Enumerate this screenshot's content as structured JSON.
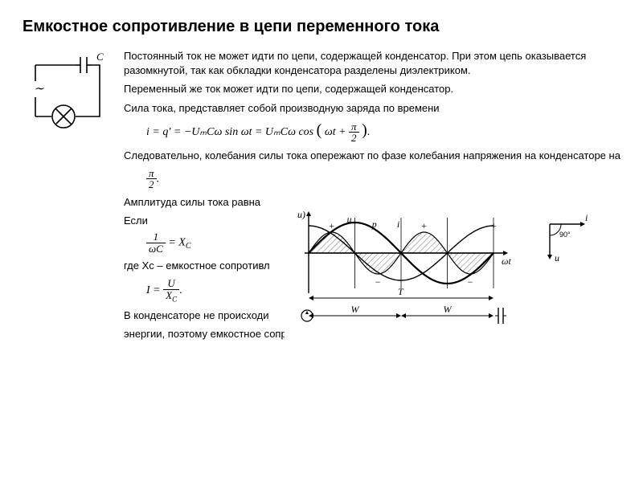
{
  "title": "Емкостное сопротивление в цепи переменного тока",
  "paragraphs": {
    "p1": "Постоянный ток не может идти по цепи, содержащей конденсатор. При этом цепь оказывается разомкнутой, так как обкладки конденсатора разделены диэлектриком.",
    "p2": "Переменный же ток может идти по цепи, содержащей конденсатор.",
    "p3": "Сила тока, представляет собой производную заряда по времени",
    "p4": "Следовательно, колебания силы тока опережают по фазе колебания напряжения на конденсаторе на",
    "p5": "Амплитуда силы тока равна",
    "p6pre": "Если",
    "p7": "где Xc – емкостное сопротивл",
    "p8a": "В конденсаторе не происходи",
    "p8b": "энергии, поэтому емкостное сопротивление называют реактивным."
  },
  "circuit": {
    "label_C": "C",
    "stroke": "#000000",
    "ac_symbol": "∼"
  },
  "formulas": {
    "main_current": "i = q′ = −UₘCω sin ωt = UₘCω cos",
    "cos_arg_l": "ωt +",
    "cos_arg_num": "π",
    "cos_arg_den": "2",
    "pi2_num": "π",
    "pi2_den": "2",
    "xc_num": "1",
    "xc_den": "ωC",
    "xc_eq": " = X",
    "xc_sub": "C",
    "I_left": "I = ",
    "I_num": "U",
    "I_den": "X",
    "I_den_sub": "C"
  },
  "wave": {
    "type": "line",
    "u_label": "u",
    "i_label": "i",
    "p_label": "p",
    "x_axis_label": "ωt",
    "y_axis_label": "u)",
    "T_label": "T",
    "W_label": "W",
    "stroke": "#000000",
    "hatch_color": "#000000",
    "bg": "#ffffff",
    "line_width": 1.6,
    "amp_u": 38,
    "amp_i": 34,
    "amp_p": 26,
    "xlim": [
      0,
      6.2832
    ],
    "xticks": 4
  },
  "phasor": {
    "i_axis": "i",
    "u_axis": "u",
    "angle_label": "90°",
    "stroke": "#000000"
  },
  "colors": {
    "text": "#000000",
    "bg": "#ffffff"
  }
}
